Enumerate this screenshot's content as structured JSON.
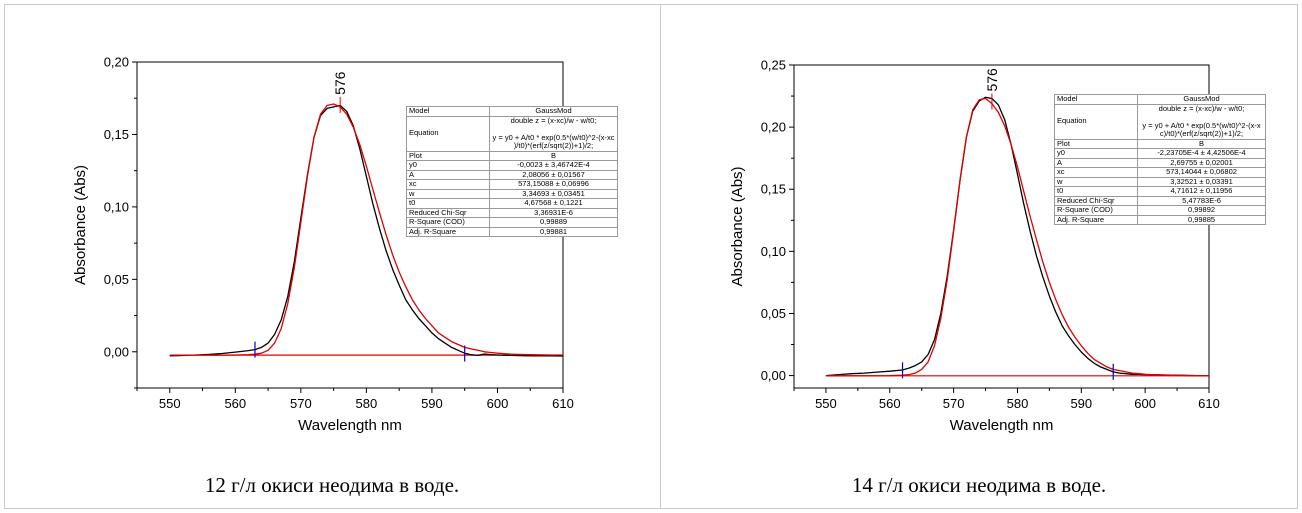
{
  "charts": [
    {
      "caption": "12 г/л окиси неодима в воде.",
      "peak_label": "576",
      "xlabel": "Wavelength nm",
      "ylabel": "Absorbance (Abs)",
      "xlim": [
        545,
        610
      ],
      "ylim": [
        -0.025,
        0.2
      ],
      "xticks": [
        "550",
        "560",
        "570",
        "580",
        "590",
        "600",
        "610"
      ],
      "yticks": [
        "0,00",
        "0,05",
        "0,10",
        "0,15",
        "0,20"
      ],
      "fit_table": {
        "Model": "GaussMod",
        "Equation": "double z = (x-xc)/w - w/t0;\n\ny = y0 + A/t0 * exp(0.5*(w/t0)^2-(x-xc\n)/t0)*(erf(z/sqrt(2))+1)/2;",
        "Plot": "B",
        "y0": "-0,0023 ± 3,46742E-4",
        "A": "2,08056 ± 0,01567",
        "xc": "573,15088 ± 0,06996",
        "w": "3,34693 ± 0,03451",
        "t0": "4,67568 ± 0,1221",
        "Reduced Chi-Sqr": "3,36931E-6",
        "R-Square (COD)": "0,99889",
        "Adj. R-Square": "0,99881"
      },
      "chart_data": {
        "type": "line",
        "x_range": [
          550,
          610
        ],
        "series": [
          {
            "color": "#000000",
            "x": [
              550,
              552,
              554,
              556,
              558,
              560,
              562,
              563,
              564,
              565,
              566,
              567,
              568,
              569,
              570,
              571,
              572,
              573,
              574,
              575,
              576,
              577,
              578,
              579,
              580,
              581,
              582,
              583,
              584,
              585,
              586,
              587,
              588,
              589,
              590,
              591,
              592,
              593,
              594,
              595,
              596,
              597,
              598,
              599,
              600,
              602,
              604,
              606,
              608,
              610
            ],
            "y": [
              -0.0028,
              -0.0026,
              -0.0022,
              -0.0018,
              -0.0012,
              -0.0002,
              0.0008,
              0.0015,
              0.003,
              0.006,
              0.012,
              0.022,
              0.038,
              0.062,
              0.092,
              0.122,
              0.148,
              0.163,
              0.168,
              0.169,
              0.17,
              0.166,
              0.156,
              0.14,
              0.121,
              0.102,
              0.085,
              0.07,
              0.057,
              0.046,
              0.036,
              0.029,
              0.023,
              0.018,
              0.013,
              0.009,
              0.006,
              0.003,
              0.001,
              -0.001,
              -0.002,
              -0.0025,
              -0.0015,
              -0.002,
              -0.0022,
              -0.0025,
              -0.0027,
              -0.0028,
              -0.0028,
              -0.0029
            ]
          },
          {
            "color": "#e00000",
            "x": [
              550,
              552,
              554,
              556,
              558,
              560,
              562,
              563,
              564,
              565,
              566,
              567,
              568,
              569,
              570,
              571,
              572,
              573,
              574,
              575,
              576,
              577,
              578,
              579,
              580,
              581,
              582,
              583,
              584,
              585,
              586,
              587,
              588,
              589,
              590,
              591,
              592,
              593,
              594,
              595,
              596,
              597,
              598,
              599,
              600,
              602,
              604,
              606,
              608,
              610
            ],
            "y": [
              -0.0023,
              -0.0023,
              -0.0023,
              -0.0023,
              -0.0023,
              -0.0022,
              -0.002,
              -0.0017,
              -0.001,
              0.001,
              0.006,
              0.016,
              0.033,
              0.058,
              0.089,
              0.121,
              0.148,
              0.164,
              0.17,
              0.171,
              0.169,
              0.164,
              0.155,
              0.143,
              0.128,
              0.112,
              0.096,
              0.081,
              0.067,
              0.055,
              0.045,
              0.036,
              0.029,
              0.023,
              0.018,
              0.013,
              0.01,
              0.007,
              0.005,
              0.003,
              0.002,
              0.001,
              0.0,
              -0.0005,
              -0.001,
              -0.0016,
              -0.0019,
              -0.0021,
              -0.0022,
              -0.0022
            ]
          }
        ],
        "baseline": {
          "color": "#e00000",
          "x": [
            550,
            610
          ],
          "y": [
            -0.0023,
            -0.0023
          ]
        },
        "markers": [
          {
            "color": "#0000cc",
            "x": 563,
            "y": 0.0015
          },
          {
            "color": "#0000cc",
            "x": 595,
            "y": -0.0012
          }
        ]
      }
    },
    {
      "caption": "14 г/л окиси неодима в воде.",
      "peak_label": "576",
      "xlabel": "Wavelength nm",
      "ylabel": "Absorbance (Abs)",
      "xlim": [
        545,
        610
      ],
      "ylim": [
        -0.01,
        0.25
      ],
      "xticks": [
        "550",
        "560",
        "570",
        "580",
        "590",
        "600",
        "610"
      ],
      "yticks": [
        "0,00",
        "0,05",
        "0,10",
        "0,15",
        "0,20",
        "0,25"
      ],
      "fit_table": {
        "Model": "GaussMod",
        "Equation": "double z = (x-xc)/w - w/t0;\n\ny = y0 + A/t0 * exp(0.5*(w/t0)^2-(x-x\nc)/t0)*(erf(z/sqrt(2))+1)/2;",
        "Plot": "B",
        "y0": "-2,23705E-4 ± 4,42506E-4",
        "A": "2,69755 ± 0,02001",
        "xc": "573,14044 ± 0,06802",
        "w": "3,32521 ± 0,03391",
        "t0": "4,71612 ± 0,11956",
        "Reduced Chi-Sqr": "5,47783E-6",
        "R-Square (COD)": "0,99892",
        "Adj. R-Square": "0,99885"
      },
      "chart_data": {
        "type": "line",
        "x_range": [
          550,
          610
        ],
        "series": [
          {
            "color": "#000000",
            "x": [
              550,
              552,
              554,
              556,
              558,
              560,
              562,
              563,
              564,
              565,
              566,
              567,
              568,
              569,
              570,
              571,
              572,
              573,
              574,
              575,
              576,
              577,
              578,
              579,
              580,
              581,
              582,
              583,
              584,
              585,
              586,
              587,
              588,
              589,
              590,
              591,
              592,
              593,
              594,
              595,
              596,
              597,
              598,
              599,
              600,
              602,
              604,
              606,
              608,
              610
            ],
            "y": [
              0.0,
              0.0008,
              0.0015,
              0.002,
              0.0028,
              0.0035,
              0.0045,
              0.006,
              0.008,
              0.011,
              0.017,
              0.029,
              0.05,
              0.08,
              0.117,
              0.157,
              0.192,
              0.213,
              0.221,
              0.224,
              0.223,
              0.218,
              0.206,
              0.186,
              0.162,
              0.138,
              0.116,
              0.096,
              0.079,
              0.064,
              0.051,
              0.04,
              0.032,
              0.025,
              0.019,
              0.014,
              0.01,
              0.007,
              0.005,
              0.003,
              0.002,
              0.0015,
              0.001,
              0.001,
              0.0008,
              0.0006,
              0.0004,
              0.0002,
              0.0,
              -0.0002
            ]
          },
          {
            "color": "#e00000",
            "x": [
              550,
              552,
              554,
              556,
              558,
              560,
              562,
              563,
              564,
              565,
              566,
              567,
              568,
              569,
              570,
              571,
              572,
              573,
              574,
              575,
              576,
              577,
              578,
              579,
              580,
              581,
              582,
              583,
              584,
              585,
              586,
              587,
              588,
              589,
              590,
              591,
              592,
              593,
              594,
              595,
              596,
              597,
              598,
              599,
              600,
              602,
              604,
              606,
              608,
              610
            ],
            "y": [
              -0.0002,
              -0.0002,
              -0.0002,
              -0.0002,
              -0.0002,
              -0.0001,
              0.0003,
              0.0008,
              0.002,
              0.005,
              0.011,
              0.024,
              0.046,
              0.077,
              0.116,
              0.157,
              0.192,
              0.214,
              0.222,
              0.223,
              0.219,
              0.212,
              0.201,
              0.186,
              0.168,
              0.148,
              0.128,
              0.109,
              0.091,
              0.075,
              0.061,
              0.049,
              0.039,
              0.031,
              0.024,
              0.018,
              0.013,
              0.01,
              0.007,
              0.005,
              0.004,
              0.003,
              0.002,
              0.0015,
              0.001,
              0.0005,
              0.0002,
              0.0,
              -0.0001,
              -0.0002
            ]
          }
        ],
        "baseline": {
          "color": "#e00000",
          "x": [
            550,
            610
          ],
          "y": [
            -0.0002,
            -0.0002
          ]
        },
        "markers": [
          {
            "color": "#0000cc",
            "x": 562,
            "y": 0.0042
          },
          {
            "color": "#0000cc",
            "x": 595,
            "y": 0.003
          }
        ]
      }
    }
  ]
}
